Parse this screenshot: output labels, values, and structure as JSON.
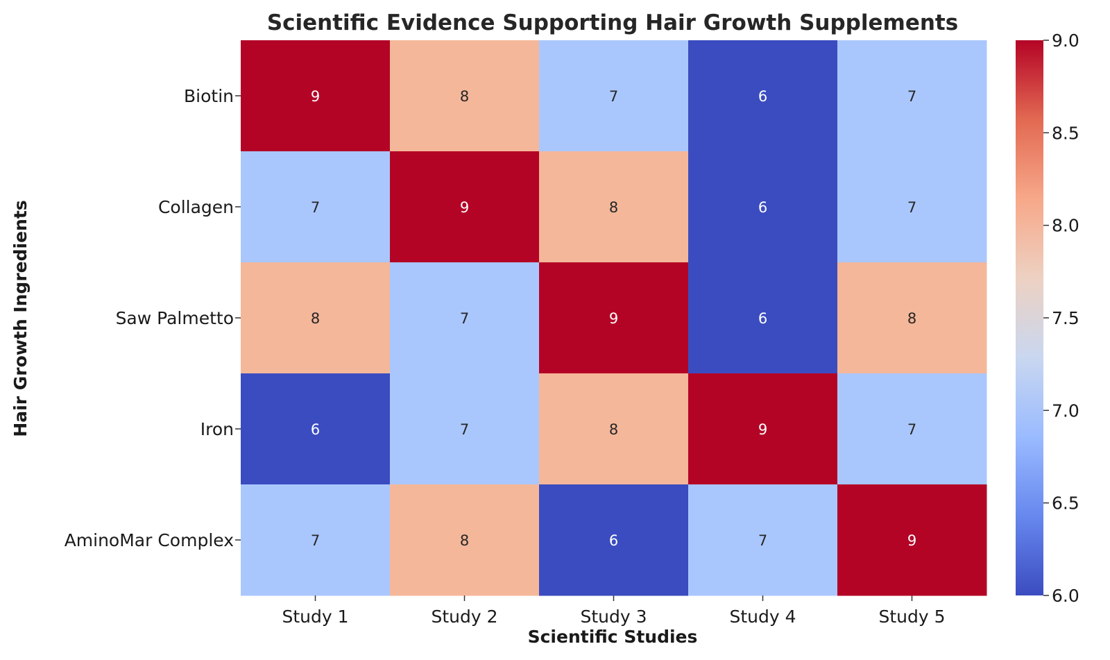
{
  "chart_data": {
    "type": "heatmap",
    "title": "Scientific Evidence Supporting Hair Growth Supplements",
    "xlabel": "Scientific Studies",
    "ylabel": "Hair Growth Ingredients",
    "x_categories": [
      "Study 1",
      "Study 2",
      "Study 3",
      "Study 4",
      "Study 5"
    ],
    "y_categories": [
      "Biotin",
      "Collagen",
      "Saw Palmetto",
      "Iron",
      "AminoMar Complex"
    ],
    "values": [
      [
        9,
        8,
        7,
        6,
        7
      ],
      [
        7,
        9,
        8,
        6,
        7
      ],
      [
        8,
        7,
        9,
        6,
        8
      ],
      [
        6,
        7,
        8,
        9,
        7
      ],
      [
        7,
        8,
        6,
        7,
        9
      ]
    ],
    "show_values": true,
    "colormap": "coolwarm",
    "value_colors": {
      "6": "#3b4cc0",
      "7": "#aac7fd",
      "8": "#f5b79a",
      "9": "#b40426"
    },
    "colorbar": {
      "range": [
        6.0,
        9.0
      ],
      "ticks": [
        "6.0",
        "6.5",
        "7.0",
        "7.5",
        "8.0",
        "8.5",
        "9.0"
      ],
      "stops": [
        "#3b4cc0",
        "#6788ee",
        "#9abbff",
        "#c9d7f0",
        "#edd1c2",
        "#f7a889",
        "#e26952",
        "#b40426"
      ]
    },
    "grid": false,
    "legend": "colorbar-right"
  }
}
